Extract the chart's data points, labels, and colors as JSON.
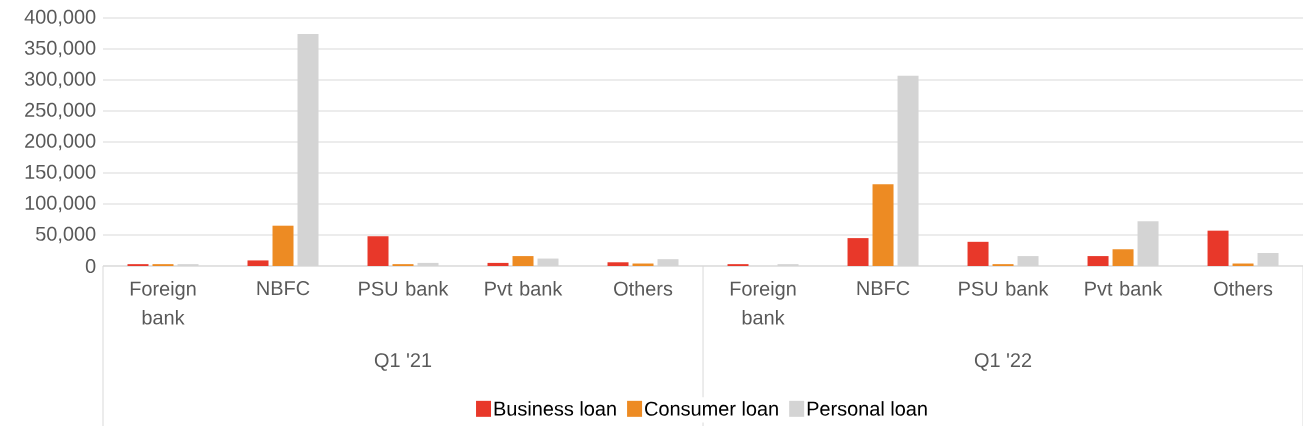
{
  "chart_data": {
    "type": "bar",
    "categories": [
      "Foreign bank",
      "NBFC",
      "PSU bank",
      "Pvt bank",
      "Others",
      "Foreign bank",
      "NBFC",
      "PSU bank",
      "Pvt bank",
      "Others"
    ],
    "series": [
      {
        "name": "Business loan",
        "color": "#e8382a",
        "values": [
          3000,
          9000,
          48000,
          5000,
          6000,
          3000,
          45000,
          39000,
          16000,
          57000
        ]
      },
      {
        "name": "Consumer loan",
        "color": "#ed8b23",
        "values": [
          3000,
          65000,
          3000,
          16000,
          4000,
          0,
          132000,
          3000,
          27000,
          4000
        ]
      },
      {
        "name": "Personal loan",
        "color": "#d4d4d4",
        "values": [
          3000,
          374000,
          5000,
          12000,
          11000,
          3000,
          307000,
          16000,
          72000,
          21000
        ]
      }
    ],
    "annotations": [
      "Q1 '21",
      "Q1 '22"
    ],
    "ylim": [
      0,
      400000
    ],
    "yticks": [
      {
        "value": 0,
        "label": "0"
      },
      {
        "value": 50000,
        "label": "50,000"
      },
      {
        "value": 100000,
        "label": "100,000"
      },
      {
        "value": 150000,
        "label": "150,000"
      },
      {
        "value": 200000,
        "label": "200,000"
      },
      {
        "value": 250000,
        "label": "250,000"
      },
      {
        "value": 300000,
        "label": "300,000"
      },
      {
        "value": 350000,
        "label": "350,000"
      },
      {
        "value": 400000,
        "label": "400,000"
      }
    ],
    "grid": "y",
    "legend": "bottom"
  }
}
